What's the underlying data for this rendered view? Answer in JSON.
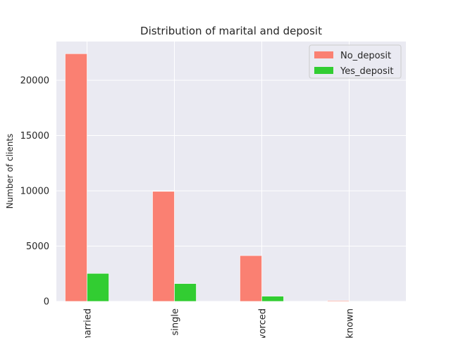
{
  "chart_data": {
    "type": "bar",
    "title": "Distribution of marital and deposit",
    "xlabel": "",
    "ylabel": "Number of clients",
    "categories": [
      "married",
      "single",
      "divorced",
      "unknown"
    ],
    "series": [
      {
        "name": "No_deposit",
        "values": [
          22400,
          9950,
          4140,
          70
        ],
        "color": "#fa8072"
      },
      {
        "name": "Yes_deposit",
        "values": [
          2530,
          1610,
          470,
          10
        ],
        "color": "#32cd32"
      }
    ],
    "ylim": [
      0,
      23500
    ],
    "yticks": [
      0,
      5000,
      10000,
      15000,
      20000
    ],
    "grid": true,
    "legend_position": "top-right",
    "background": "#eaeaf2"
  }
}
